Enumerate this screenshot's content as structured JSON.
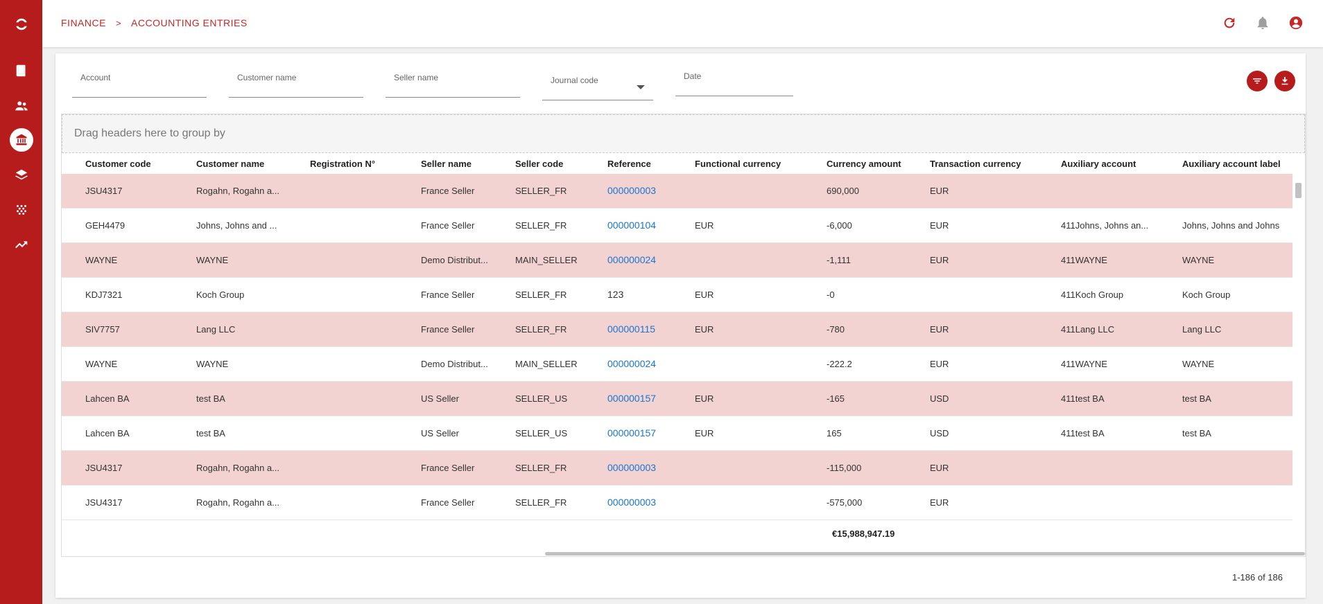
{
  "breadcrumb": {
    "first": "FINANCE",
    "separator": ">",
    "second": "ACCOUNTING ENTRIES"
  },
  "sidebar": {
    "items": [
      {
        "icon": "logo-icon"
      },
      {
        "icon": "book-icon"
      },
      {
        "icon": "people-icon"
      },
      {
        "icon": "bank-icon",
        "active": true
      },
      {
        "icon": "layers-icon"
      },
      {
        "icon": "scatter-icon"
      },
      {
        "icon": "trending-up-icon"
      }
    ]
  },
  "top_actions": [
    "refresh-icon",
    "bell-icon",
    "account-icon"
  ],
  "filters": {
    "account": "Account",
    "customer_name": "Customer name",
    "seller_name": "Seller name",
    "journal_code": "Journal code",
    "date": "Date"
  },
  "group_panel": "Drag headers here to group by",
  "columns": [
    "Customer code",
    "Customer name",
    "Registration N°",
    "Seller name",
    "Seller code",
    "Reference",
    "Functional currency",
    "Currency amount",
    "Transaction currency",
    "Auxiliary account",
    "Auxiliary account label"
  ],
  "rows": [
    {
      "customer_code": "JSU4317",
      "customer_name": "Rogahn, Rogahn a...",
      "registration": "",
      "seller_name": "France Seller",
      "seller_code": "SELLER_FR",
      "reference": "000000003",
      "ref_link": true,
      "functional_currency": "",
      "currency_amount": "690,000",
      "transaction_currency": "EUR",
      "aux_account": "",
      "aux_label": ""
    },
    {
      "customer_code": "GEH4479",
      "customer_name": "Johns, Johns and ...",
      "registration": "",
      "seller_name": "France Seller",
      "seller_code": "SELLER_FR",
      "reference": "000000104",
      "ref_link": true,
      "functional_currency": "EUR",
      "currency_amount": "-6,000",
      "transaction_currency": "EUR",
      "aux_account": "411Johns, Johns an...",
      "aux_label": "Johns, Johns and Johns"
    },
    {
      "customer_code": "WAYNE",
      "customer_name": "WAYNE",
      "registration": "",
      "seller_name": "Demo Distribut...",
      "seller_code": "MAIN_SELLER",
      "reference": "000000024",
      "ref_link": true,
      "functional_currency": "",
      "currency_amount": "-1,111",
      "transaction_currency": "EUR",
      "aux_account": "411WAYNE",
      "aux_label": "WAYNE"
    },
    {
      "customer_code": "KDJ7321",
      "customer_name": "Koch Group",
      "registration": "",
      "seller_name": "France Seller",
      "seller_code": "SELLER_FR",
      "reference": "123",
      "ref_link": false,
      "functional_currency": "EUR",
      "currency_amount": "-0",
      "transaction_currency": "",
      "aux_account": "411Koch Group",
      "aux_label": "Koch Group"
    },
    {
      "customer_code": "SIV7757",
      "customer_name": "Lang LLC",
      "registration": "",
      "seller_name": "France Seller",
      "seller_code": "SELLER_FR",
      "reference": "000000115",
      "ref_link": true,
      "functional_currency": "EUR",
      "currency_amount": "-780",
      "transaction_currency": "EUR",
      "aux_account": "411Lang LLC",
      "aux_label": "Lang LLC"
    },
    {
      "customer_code": "WAYNE",
      "customer_name": "WAYNE",
      "registration": "",
      "seller_name": "Demo Distribut...",
      "seller_code": "MAIN_SELLER",
      "reference": "000000024",
      "ref_link": true,
      "functional_currency": "",
      "currency_amount": "-222.2",
      "transaction_currency": "EUR",
      "aux_account": "411WAYNE",
      "aux_label": "WAYNE"
    },
    {
      "customer_code": "Lahcen BA",
      "customer_name": "test BA",
      "registration": "",
      "seller_name": "US Seller",
      "seller_code": "SELLER_US",
      "reference": "000000157",
      "ref_link": true,
      "functional_currency": "EUR",
      "currency_amount": "-165",
      "transaction_currency": "USD",
      "aux_account": "411test BA",
      "aux_label": "test BA"
    },
    {
      "customer_code": "Lahcen BA",
      "customer_name": "test BA",
      "registration": "",
      "seller_name": "US Seller",
      "seller_code": "SELLER_US",
      "reference": "000000157",
      "ref_link": true,
      "functional_currency": "EUR",
      "currency_amount": "165",
      "transaction_currency": "USD",
      "aux_account": "411test BA",
      "aux_label": "test BA"
    },
    {
      "customer_code": "JSU4317",
      "customer_name": "Rogahn, Rogahn a...",
      "registration": "",
      "seller_name": "France Seller",
      "seller_code": "SELLER_FR",
      "reference": "000000003",
      "ref_link": true,
      "functional_currency": "",
      "currency_amount": "-115,000",
      "transaction_currency": "EUR",
      "aux_account": "",
      "aux_label": ""
    },
    {
      "customer_code": "JSU4317",
      "customer_name": "Rogahn, Rogahn a...",
      "registration": "",
      "seller_name": "France Seller",
      "seller_code": "SELLER_FR",
      "reference": "000000003",
      "ref_link": true,
      "functional_currency": "",
      "currency_amount": "-575,000",
      "transaction_currency": "EUR",
      "aux_account": "",
      "aux_label": ""
    }
  ],
  "total": "€15,988,947.19",
  "pager": "1-186 of 186",
  "colors": {
    "brand": "#b71c1c",
    "row_highlight": "#f2d3d1",
    "link": "#1976d2"
  }
}
